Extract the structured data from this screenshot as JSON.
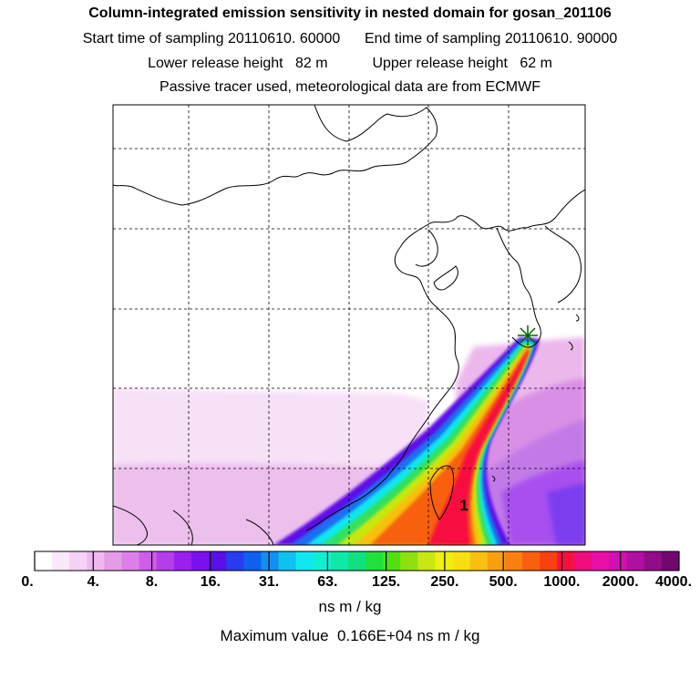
{
  "header": {
    "title": "Column-integrated emission sensitivity in nested domain for gosan_201106",
    "start_label": "Start time of sampling",
    "start_value": "20110610. 60000",
    "end_label": "End time of sampling",
    "end_value": "20110610. 90000",
    "lower_label": "Lower release height",
    "lower_value": "82 m",
    "upper_label": "Upper release height",
    "upper_value": "62 m",
    "info": "Passive tracer used, meteorological data are from ECMWF"
  },
  "map": {
    "receptor_marker": "star-icon",
    "receptor_color": "#006400",
    "annotation": "1",
    "gridlines": "dashed"
  },
  "legend": {
    "tick_labels": [
      "0.",
      "4.",
      "8.",
      "16.",
      "31.",
      "63.",
      "125.",
      "250.",
      "500.",
      "1000.",
      "2000.",
      "4000."
    ],
    "colors": [
      "#ffffff",
      "#fbe8fb",
      "#f6d2f6",
      "#efb8ef",
      "#e69be6",
      "#dd7fe8",
      "#cc5ee8",
      "#b43ee8",
      "#9b20f0",
      "#7a10f0",
      "#5a10e8",
      "#2a3bf0",
      "#1060f0",
      "#1090f0",
      "#10c0f0",
      "#10e8f0",
      "#10f0d0",
      "#10e8a8",
      "#10e080",
      "#20e040",
      "#50e010",
      "#90e010",
      "#c8e810",
      "#f0f010",
      "#f8e010",
      "#f8c010",
      "#f8a010",
      "#f88010",
      "#f86010",
      "#f84010",
      "#f81040",
      "#f00c80",
      "#e810a8",
      "#d010b0",
      "#b010a0",
      "#900c88",
      "#700870"
    ],
    "units": "ns m / kg",
    "max_label": "Maximum value",
    "max_value": "0.166E+04",
    "max_units": "ns m / kg"
  }
}
